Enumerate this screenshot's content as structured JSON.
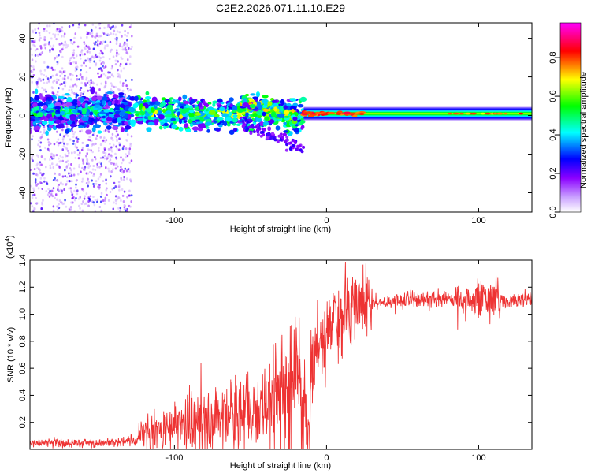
{
  "title": "C2E2.2026.071.11.10.E29",
  "chart_data": [
    {
      "type": "heatmap",
      "name": "spectrogram",
      "xlabel": "Height of straight line (km)",
      "ylabel": "Frequency (Hz)",
      "xlim": [
        -195,
        135
      ],
      "ylim": [
        -50,
        48
      ],
      "xticks": [
        -100,
        0,
        100
      ],
      "xtick_labels": [
        "-100",
        "0",
        "100"
      ],
      "yticks": [
        -40,
        -20,
        0,
        20,
        40
      ],
      "ytick_labels": [
        "-40",
        "-20",
        "0",
        "20",
        "40"
      ],
      "colorbar": {
        "label": "Normalized spectral amplitude",
        "range": [
          0.0,
          0.98
        ],
        "ticks": [
          0.0,
          0.2,
          0.4,
          0.6,
          0.8
        ],
        "tick_labels": [
          "0.0",
          "0.2",
          "0.4",
          "0.6",
          "0.8"
        ],
        "colormap": [
          "#ffffff",
          "#8b00ff",
          "#0000ff",
          "#00ffff",
          "#00ff00",
          "#ffff00",
          "#ff0000",
          "#ff00ff"
        ]
      },
      "regions": [
        {
          "x": [
            -195,
            -128
          ],
          "freq_center": 0,
          "freq_halfwidth": 50,
          "amplitude": 0.15,
          "note": "broadband noise"
        },
        {
          "x": [
            -195,
            -128
          ],
          "freq_center": 2,
          "freq_halfwidth": 8,
          "amplitude": 0.3
        },
        {
          "x": [
            -128,
            -15
          ],
          "freq_center": 2,
          "freq_halfwidth": 8,
          "amplitude": 0.4
        },
        {
          "x": [
            -55,
            -20
          ],
          "freq_center": 8,
          "freq_halfwidth": 4,
          "amplitude": 0.45,
          "note": "upper drifting branch"
        },
        {
          "x": [
            -15,
            135
          ],
          "freq_center": 1,
          "freq_halfwidth": 2,
          "amplitude": 0.85,
          "note": "stable carrier"
        }
      ]
    },
    {
      "type": "line",
      "name": "snr",
      "xlabel": "Height of straight line (km)",
      "ylabel": "SNR (10 * v/v)",
      "exponent_label": "(x10",
      "exponent_value": "4",
      "exponent_close": ")",
      "xlim": [
        -195,
        135
      ],
      "ylim": [
        0,
        14000
      ],
      "xticks": [
        -100,
        0,
        100
      ],
      "xtick_labels": [
        "-100",
        "0",
        "100"
      ],
      "yticks": [
        2000,
        4000,
        6000,
        8000,
        10000,
        12000,
        14000
      ],
      "ytick_labels": [
        "0.2",
        "0.4",
        "0.6",
        "0.8",
        "1.0",
        "1.2",
        "1.4"
      ],
      "color": "#ee3333",
      "series": [
        {
          "name": "SNR",
          "x": [
            -195,
            -180,
            -160,
            -140,
            -125,
            -120,
            -110,
            -100,
            -90,
            -80,
            -70,
            -60,
            -50,
            -40,
            -35,
            -30,
            -25,
            -20,
            -15,
            -12,
            -10,
            -5,
            0,
            5,
            10,
            20,
            30,
            40,
            50,
            60,
            70,
            80,
            90,
            100,
            110,
            120,
            135
          ],
          "y": [
            400,
            500,
            450,
            500,
            600,
            1300,
            1400,
            1600,
            1900,
            2100,
            2200,
            2400,
            2600,
            3200,
            3800,
            4300,
            4900,
            5800,
            3500,
            2000,
            5500,
            7500,
            8300,
            8900,
            9600,
            10700,
            10900,
            11000,
            11100,
            11100,
            11200,
            11150,
            11000,
            11100,
            11050,
            11000,
            11100
          ]
        }
      ]
    }
  ]
}
